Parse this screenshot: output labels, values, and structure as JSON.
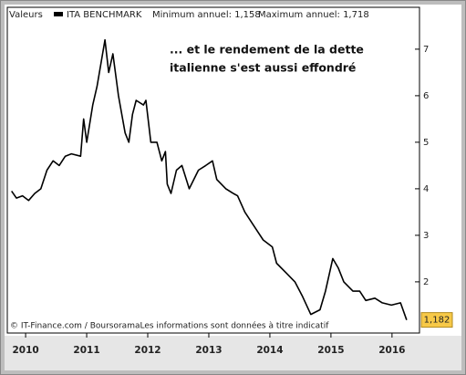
{
  "chart_data": {
    "type": "line",
    "header": [
      "Valeurs",
      "ITA BENCHMARK",
      "Minimum annuel: 1,158",
      "Maximum annuel: 1,718"
    ],
    "annotation": [
      "... et le rendement de la dette",
      "italienne s'est aussi effondré"
    ],
    "footer": "© IT-Finance.com / BoursoramaLes informations sont données à titre indicatif",
    "series": [
      {
        "name": "ITA BENCHMARK",
        "color": "#000000",
        "x": [
          2009.77,
          2009.85,
          2009.95,
          2010.05,
          2010.15,
          2010.25,
          2010.35,
          2010.45,
          2010.55,
          2010.65,
          2010.75,
          2010.9,
          2010.95,
          2011.0,
          2011.1,
          2011.17,
          2011.3,
          2011.36,
          2011.43,
          2011.52,
          2011.63,
          2011.69,
          2011.75,
          2011.81,
          2011.93,
          2011.97,
          2012.05,
          2012.15,
          2012.23,
          2012.29,
          2012.32,
          2012.38,
          2012.47,
          2012.56,
          2012.68,
          2012.83,
          2012.95,
          2013.06,
          2013.13,
          2013.28,
          2013.4,
          2013.47,
          2013.59,
          2013.74,
          2013.89,
          2014.04,
          2014.11,
          2014.26,
          2014.41,
          2014.53,
          2014.67,
          2014.82,
          2014.91,
          2015.03,
          2015.12,
          2015.21,
          2015.36,
          2015.47,
          2015.57,
          2015.72,
          2015.84,
          2015.99,
          2016.14,
          2016.24
        ],
        "values": [
          3.95,
          3.8,
          3.85,
          3.75,
          3.9,
          4.0,
          4.4,
          4.6,
          4.5,
          4.7,
          4.75,
          4.7,
          5.5,
          5.0,
          5.8,
          6.2,
          7.2,
          6.5,
          6.9,
          6.0,
          5.2,
          5.0,
          5.6,
          5.9,
          5.8,
          5.9,
          5.0,
          5.0,
          4.6,
          4.8,
          4.1,
          3.9,
          4.4,
          4.5,
          4.0,
          4.4,
          4.5,
          4.6,
          4.2,
          4.0,
          3.9,
          3.85,
          3.5,
          3.2,
          2.9,
          2.75,
          2.4,
          2.2,
          2.0,
          1.7,
          1.3,
          1.4,
          1.8,
          2.5,
          2.3,
          2.0,
          1.8,
          1.8,
          1.6,
          1.65,
          1.55,
          1.5,
          1.55,
          1.18
        ]
      }
    ],
    "last_value": {
      "value": 1.182,
      "label": "1,182",
      "color": "#f7c948"
    },
    "xlim": [
      2009.7,
      2016.45
    ],
    "xticks": [
      2010,
      2011,
      2012,
      2013,
      2014,
      2015,
      2016
    ],
    "ylim": [
      0.9,
      7.9
    ],
    "yticks": [
      2,
      3,
      4,
      5,
      6,
      7
    ],
    "grid": false
  }
}
